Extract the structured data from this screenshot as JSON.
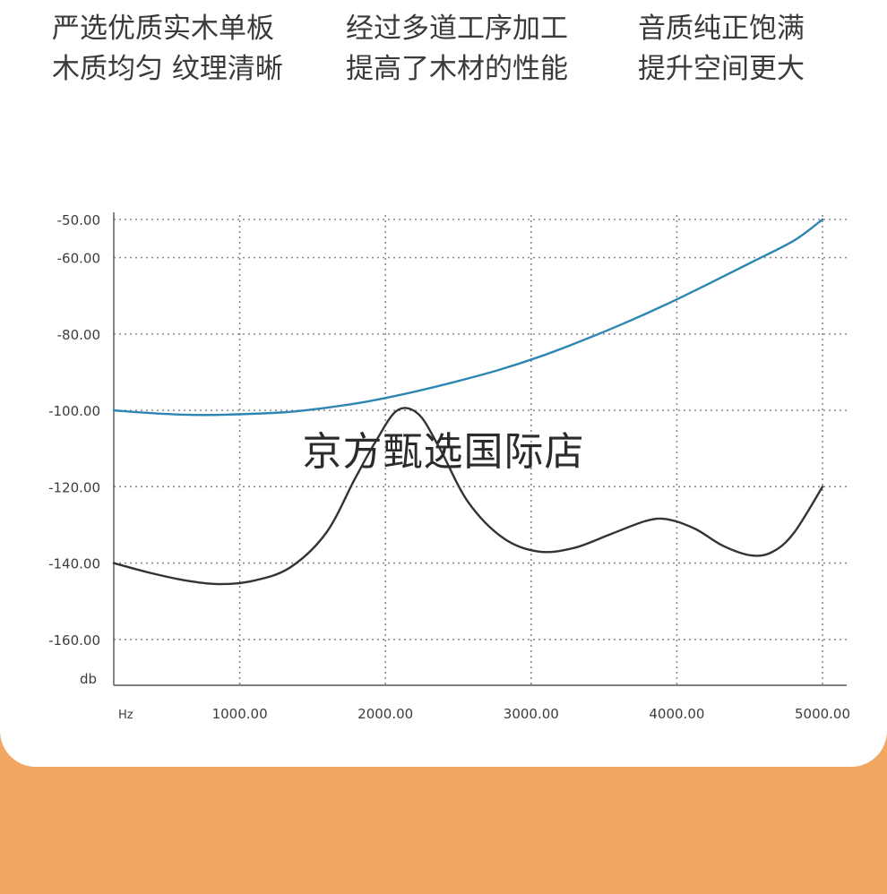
{
  "features": [
    {
      "line1": "严选优质实木单板",
      "line2": "木质均匀 纹理清晰"
    },
    {
      "line1": "经过多道工序加工",
      "line2": "提高了木材的性能"
    },
    {
      "line1": "音质纯正饱满",
      "line2": "提升空间更大"
    }
  ],
  "watermark": "京方甄选国际店",
  "colors": {
    "background": "#f1a661",
    "card": "#ffffff",
    "blue_line": "#2e86b3",
    "black_line": "#333333",
    "grid": "#8a8a8a"
  },
  "chart_data": {
    "type": "line",
    "ylabel": "db",
    "xlabel": "Hz",
    "x_ticks": [
      1000,
      2000,
      3000,
      4000,
      5000
    ],
    "x_tick_labels": [
      "1000.00",
      "2000.00",
      "3000.00",
      "4000.00",
      "5000.00"
    ],
    "y_ticks": [
      -50,
      -60,
      -80,
      -100,
      -120,
      -140,
      -160
    ],
    "y_tick_labels": [
      "-50.00",
      "-60.00",
      "-80.00",
      "-100.00",
      "-120.00",
      "-140.00",
      "-160.00"
    ],
    "xlim": [
      0,
      5000
    ],
    "ylim": [
      -172,
      -50
    ],
    "grid": true,
    "series": [
      {
        "color": "#2e86b3",
        "x": [
          0,
          300,
          600,
          900,
          1200,
          1500,
          1800,
          2100,
          2400,
          2700,
          3000,
          3300,
          3600,
          3900,
          4200,
          4500,
          4800,
          5000
        ],
        "y": [
          -100,
          -100.8,
          -101.2,
          -101,
          -100.5,
          -99.3,
          -97.6,
          -95.3,
          -92.6,
          -89.6,
          -86,
          -81.8,
          -77.2,
          -72.2,
          -66.8,
          -61.2,
          -55.5,
          -50
        ]
      },
      {
        "color": "#333333",
        "x": [
          0,
          250,
          500,
          750,
          1000,
          1250,
          1500,
          1700,
          1850,
          2000,
          2150,
          2300,
          2500,
          2750,
          3000,
          3250,
          3500,
          3750,
          3900,
          4100,
          4300,
          4500,
          4650,
          4800,
          5000
        ],
        "y": [
          -140,
          -142.5,
          -144.5,
          -145.5,
          -144.5,
          -141,
          -132,
          -118,
          -108,
          -100,
          -101,
          -110,
          -124,
          -133.5,
          -137,
          -136,
          -132.5,
          -129,
          -128.5,
          -131,
          -135.5,
          -138,
          -137,
          -132,
          -120
        ]
      }
    ]
  }
}
